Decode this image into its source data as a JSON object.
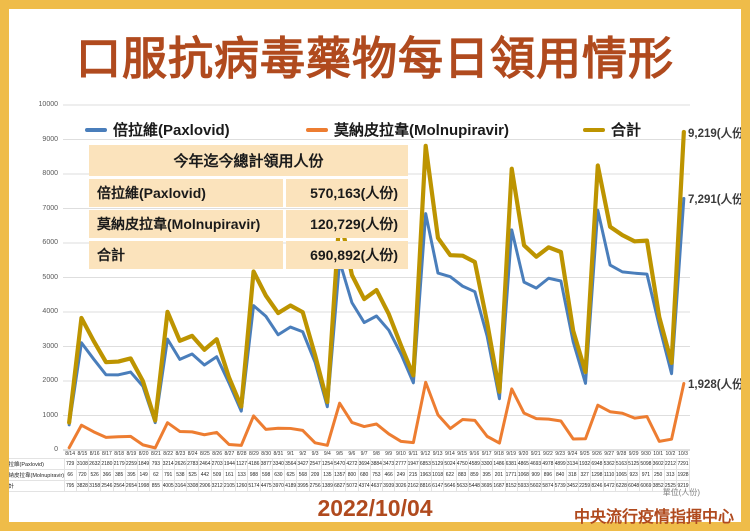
{
  "slide": {
    "title": "口服抗病毒藥物每日領用情形",
    "date": "2022/10/04",
    "source": "中央流行疫情指揮中心",
    "unit_note": "單位(人份)",
    "colors": {
      "frame": "#EFBC49",
      "title_red": "#B04A1E",
      "paxlovid_blue": "#4A7EBB",
      "molnupiravir_orange": "#ED7D31",
      "total_gold": "#BD9400",
      "table_fill": "#FBE3BC"
    }
  },
  "legend": [
    {
      "label": "倍拉維(Paxlovid)",
      "color": "#4A7EBB"
    },
    {
      "label": "莫納皮拉韋(Molnupiravir)",
      "color": "#ED7D31"
    },
    {
      "label": "合計",
      "color": "#BD9400"
    }
  ],
  "summary_table": {
    "header": "今年迄今總計領用人份",
    "rows": [
      {
        "label": "倍拉維(Paxlovid)",
        "value": "570,163(人份)"
      },
      {
        "label": "莫納皮拉韋(Molnupiravir)",
        "value": "120,729(人份)"
      },
      {
        "label": "合計",
        "value": "690,892(人份)"
      }
    ]
  },
  "callouts": [
    {
      "text": "9,219(人份)",
      "value": 9219
    },
    {
      "text": "7,291(人份)",
      "value": 7291
    },
    {
      "text": "1,928(人份)",
      "value": 1928
    }
  ],
  "chart_data": {
    "type": "line",
    "title": "口服抗病毒藥物每日領用情形",
    "xlabel": "",
    "ylabel": "人份",
    "ylim": [
      0,
      10000
    ],
    "ytick_step": 1000,
    "grid": true,
    "legend_position": "top",
    "data_table": true,
    "categories": [
      "8/14",
      "8/15",
      "8/16",
      "8/17",
      "8/18",
      "8/19",
      "8/20",
      "8/21",
      "8/22",
      "8/23",
      "8/24",
      "8/25",
      "8/26",
      "8/27",
      "8/28",
      "8/29",
      "8/30",
      "8/31",
      "9/1",
      "9/2",
      "9/3",
      "9/4",
      "9/5",
      "9/6",
      "9/7",
      "9/8",
      "9/9",
      "9/10",
      "9/11",
      "9/12",
      "9/13",
      "9/14",
      "9/15",
      "9/16",
      "9/17",
      "9/18",
      "9/19",
      "9/20",
      "9/21",
      "9/22",
      "9/23",
      "9/24",
      "9/25",
      "9/26",
      "9/27",
      "9/28",
      "9/29",
      "9/30",
      "10/1",
      "10/2",
      "10/3"
    ],
    "series": [
      {
        "name": "倍拉維(Paxlovid)",
        "color": "#4A7EBB",
        "values": [
          729,
          3108,
          2632,
          2180,
          2179,
          2259,
          1849,
          793,
          3214,
          2626,
          2783,
          2464,
          2703,
          1944,
          1127,
          4186,
          3877,
          3340,
          3564,
          3427,
          2547,
          1254,
          5470,
          4272,
          3694,
          3884,
          3473,
          2777,
          1947,
          6853,
          5129,
          5024,
          4750,
          4589,
          3300,
          1486,
          6381,
          4865,
          4693,
          4978,
          4899,
          3134,
          1932,
          6948,
          5362,
          5163,
          5125,
          5098,
          3602,
          2212,
          7291
        ]
      },
      {
        "name": "莫納皮拉韋(Molnupiravir)",
        "color": "#ED7D31",
        "values": [
          66,
          720,
          526,
          366,
          385,
          395,
          149,
          62,
          791,
          538,
          525,
          442,
          509,
          161,
          133,
          988,
          598,
          630,
          625,
          568,
          209,
          135,
          1357,
          800,
          680,
          753,
          466,
          249,
          215,
          1963,
          1018,
          622,
          883,
          859,
          395,
          201,
          1771,
          1068,
          909,
          896,
          840,
          318,
          327,
          1298,
          1110,
          1065,
          923,
          971,
          250,
          313,
          1928
        ]
      },
      {
        "name": "合計",
        "color": "#BD9400",
        "values": [
          795,
          3828,
          3158,
          2546,
          2564,
          2654,
          1998,
          855,
          4005,
          3164,
          3308,
          2906,
          3212,
          2105,
          1260,
          5174,
          4475,
          3970,
          4189,
          3995,
          2756,
          1389,
          6827,
          5072,
          4374,
          4637,
          3939,
          3026,
          2162,
          8816,
          6147,
          5646,
          5633,
          5448,
          3695,
          1687,
          8152,
          5933,
          5602,
          5874,
          5739,
          3452,
          2259,
          8246,
          6472,
          6228,
          6048,
          6069,
          3852,
          2525,
          9219
        ]
      }
    ]
  }
}
